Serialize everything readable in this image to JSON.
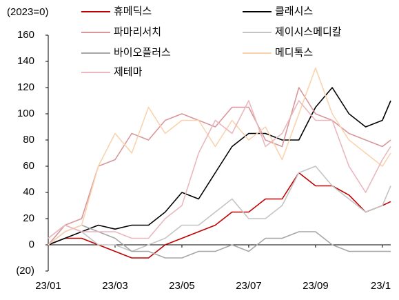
{
  "chart_data": {
    "type": "line",
    "y_label": "(2023=0)",
    "x": [
      0,
      0.5,
      1,
      1.5,
      2,
      2.5,
      3,
      3.5,
      4,
      4.5,
      5,
      5.5,
      6,
      6.5,
      7,
      7.5,
      8,
      8.5,
      9,
      9.5,
      10,
      10.25
    ],
    "xlim": [
      0,
      10.25
    ],
    "xticks": [
      {
        "value": 0,
        "label": "23/01"
      },
      {
        "value": 2,
        "label": "23/03"
      },
      {
        "value": 4,
        "label": "23/05"
      },
      {
        "value": 6,
        "label": "23/07"
      },
      {
        "value": 8,
        "label": "23/09"
      },
      {
        "value": 10,
        "label": "23/1"
      }
    ],
    "ylim": [
      -20,
      160
    ],
    "yticks": [
      {
        "value": -20,
        "label": "(20)"
      },
      0,
      20,
      40,
      60,
      80,
      100,
      120,
      140,
      160
    ],
    "series": [
      {
        "name": "휴메딕스",
        "color": "#c00000",
        "values": [
          0,
          5,
          5,
          0,
          -5,
          -10,
          -10,
          0,
          5,
          10,
          15,
          25,
          25,
          35,
          35,
          55,
          45,
          45,
          38,
          25,
          30,
          33
        ]
      },
      {
        "name": "클래시스",
        "color": "#000000",
        "values": [
          0,
          5,
          10,
          15,
          12,
          15,
          15,
          25,
          40,
          35,
          55,
          75,
          85,
          85,
          80,
          80,
          105,
          120,
          100,
          90,
          95,
          110
        ]
      },
      {
        "name": "파마리서치",
        "color": "#d9969a",
        "values": [
          0,
          15,
          20,
          60,
          65,
          85,
          80,
          95,
          100,
          95,
          90,
          105,
          105,
          80,
          75,
          120,
          100,
          95,
          85,
          80,
          75,
          80
        ]
      },
      {
        "name": "제이시스메디칼",
        "color": "#c4c4c4",
        "values": [
          5,
          15,
          10,
          0,
          0,
          -5,
          0,
          5,
          15,
          15,
          25,
          35,
          20,
          20,
          30,
          55,
          60,
          45,
          35,
          25,
          30,
          45
        ]
      },
      {
        "name": "바이오플러스",
        "color": "#a6a6a6",
        "values": [
          0,
          10,
          15,
          10,
          5,
          -5,
          -5,
          -10,
          -10,
          -5,
          -5,
          0,
          -5,
          5,
          5,
          10,
          10,
          0,
          -5,
          -5,
          -5,
          -5
        ]
      },
      {
        "name": "메디톡스",
        "color": "#f9d3ae",
        "values": [
          0,
          10,
          15,
          60,
          85,
          70,
          105,
          85,
          95,
          95,
          75,
          95,
          80,
          90,
          65,
          100,
          135,
          100,
          80,
          70,
          60,
          70
        ]
      },
      {
        "name": "제테마",
        "color": "#eab7be",
        "values": [
          5,
          15,
          10,
          10,
          10,
          5,
          5,
          20,
          30,
          70,
          95,
          85,
          110,
          75,
          85,
          110,
          95,
          95,
          60,
          40,
          65,
          75
        ]
      }
    ]
  }
}
